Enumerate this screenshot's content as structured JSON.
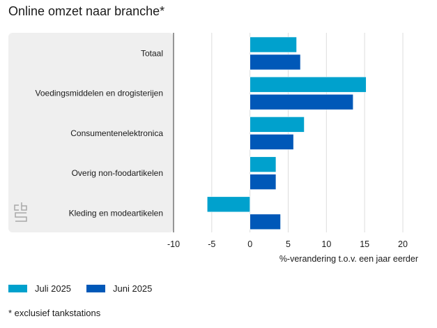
{
  "chart_data": {
    "type": "bar",
    "orientation": "horizontal",
    "title": "Online omzet naar branche*",
    "categories": [
      "Totaal",
      "Voedingsmiddelen en drogisterijen",
      "Consumentenelektronica",
      "Overig non-foodartikelen",
      "Kleding en modeartikelen"
    ],
    "series": [
      {
        "name": "Juli 2025",
        "color": "#00a1cd",
        "values": [
          6.1,
          15.2,
          7.1,
          3.4,
          -5.6
        ]
      },
      {
        "name": "Juni 2025",
        "color": "#0058b8",
        "values": [
          6.6,
          13.5,
          5.7,
          3.4,
          4.0
        ]
      }
    ],
    "xlabel": "%-verandering t.o.v. een jaar eerder",
    "ylabel": "",
    "xlim": [
      -10,
      20
    ],
    "xticks": [
      -10,
      -5,
      0,
      5,
      10,
      15,
      20
    ],
    "grid": true,
    "legend": "bottom-left"
  },
  "footnote": "* exclusief tankstations",
  "logo": "cbs"
}
